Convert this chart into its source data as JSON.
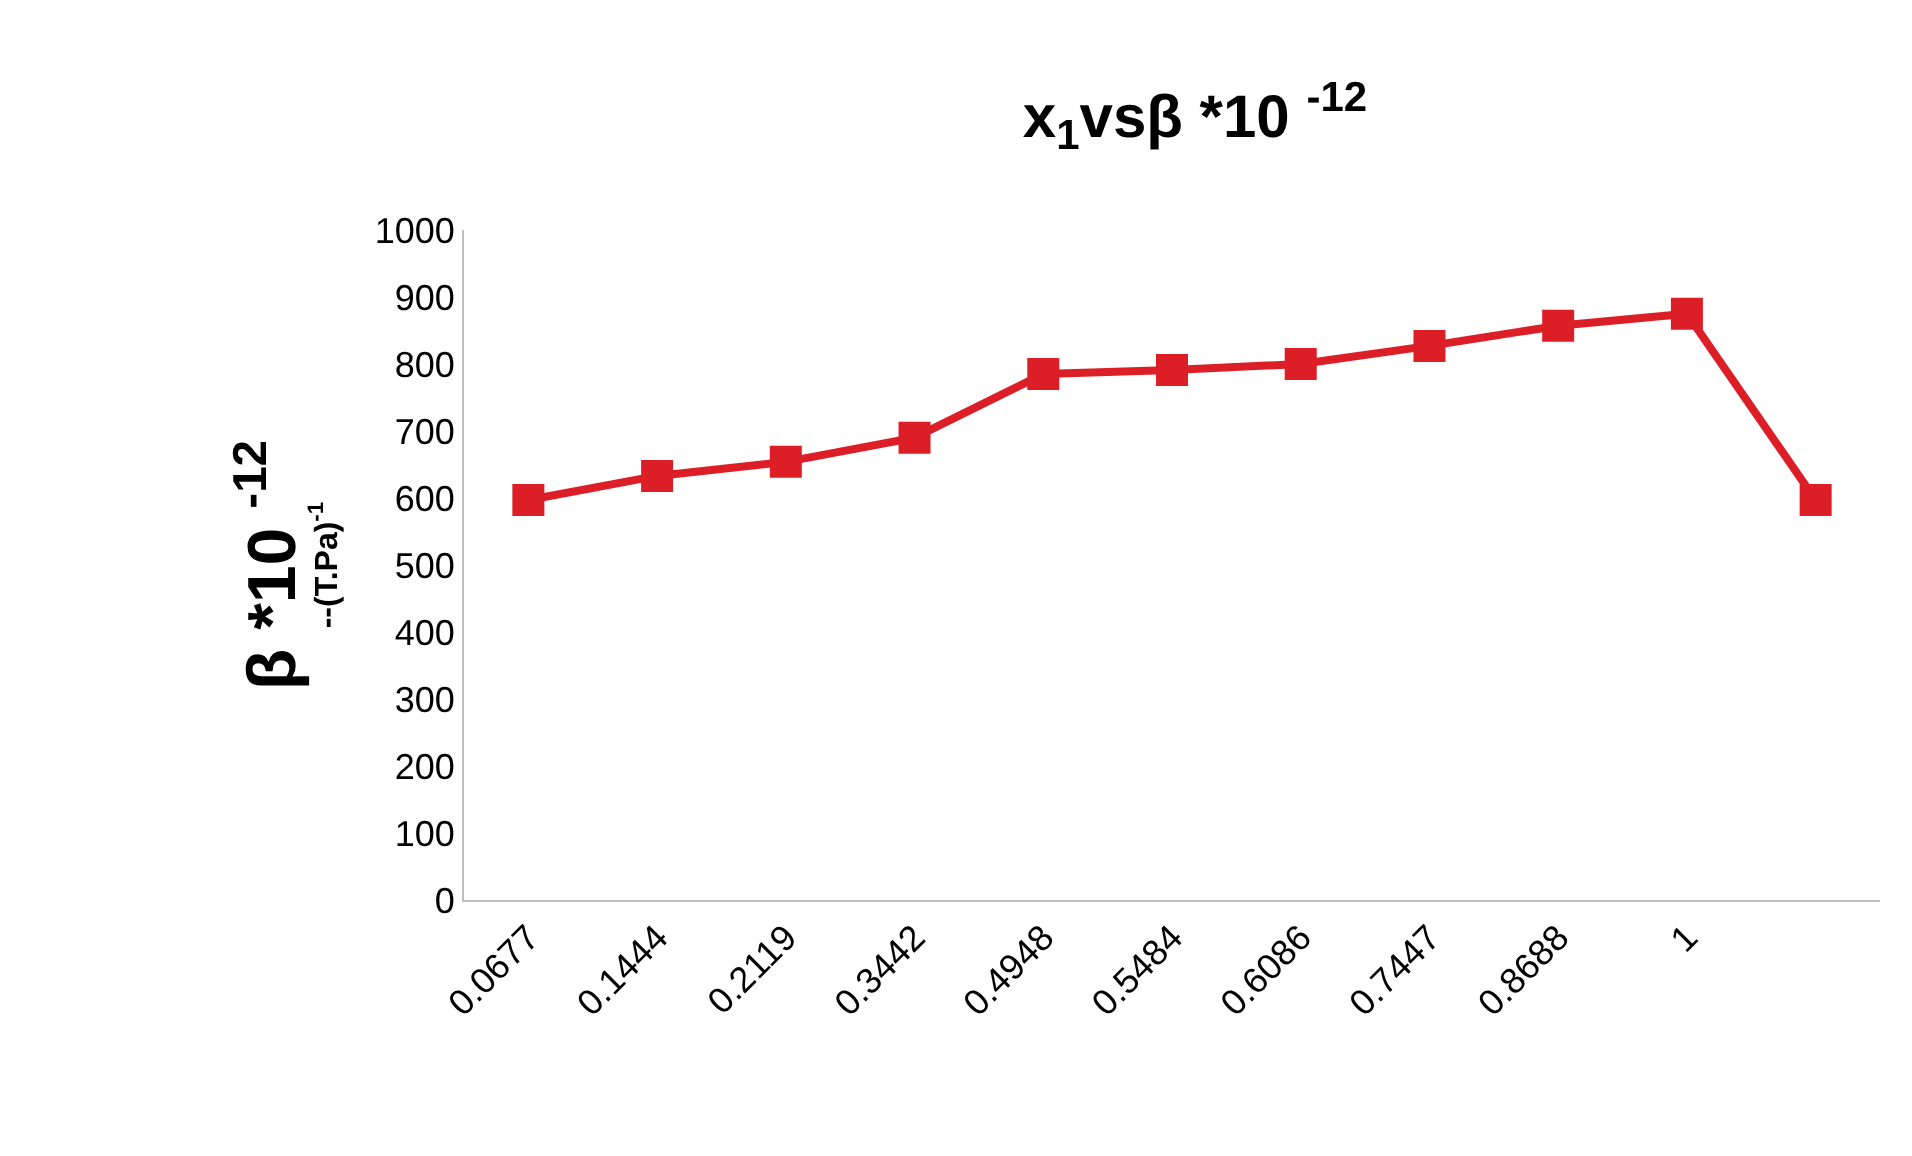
{
  "chart_data": {
    "type": "line",
    "title": "x$_{1}$vsβ *10 $^{-12}$",
    "ylabel": "β *10 $^{-12}$\n--(T.Pa)$^{-1}$",
    "categories": [
      "0.0677",
      "0.1444",
      "0.2119",
      "0.3442",
      "0.4948",
      "0.5484",
      "0.6086",
      "0.7447",
      "0.8688",
      "1",
      null
    ],
    "series": [
      {
        "color": "#dc1f26",
        "values": [
          597,
          633,
          654,
          690,
          785,
          791,
          800,
          827,
          857,
          875,
          597
        ]
      }
    ],
    "ylim": [
      0,
      1000
    ],
    "yticks": [
      0,
      100,
      200,
      300,
      400,
      500,
      600,
      700,
      800,
      900,
      1000
    ],
    "grid": false,
    "marker": "square",
    "line_style": "solid"
  }
}
